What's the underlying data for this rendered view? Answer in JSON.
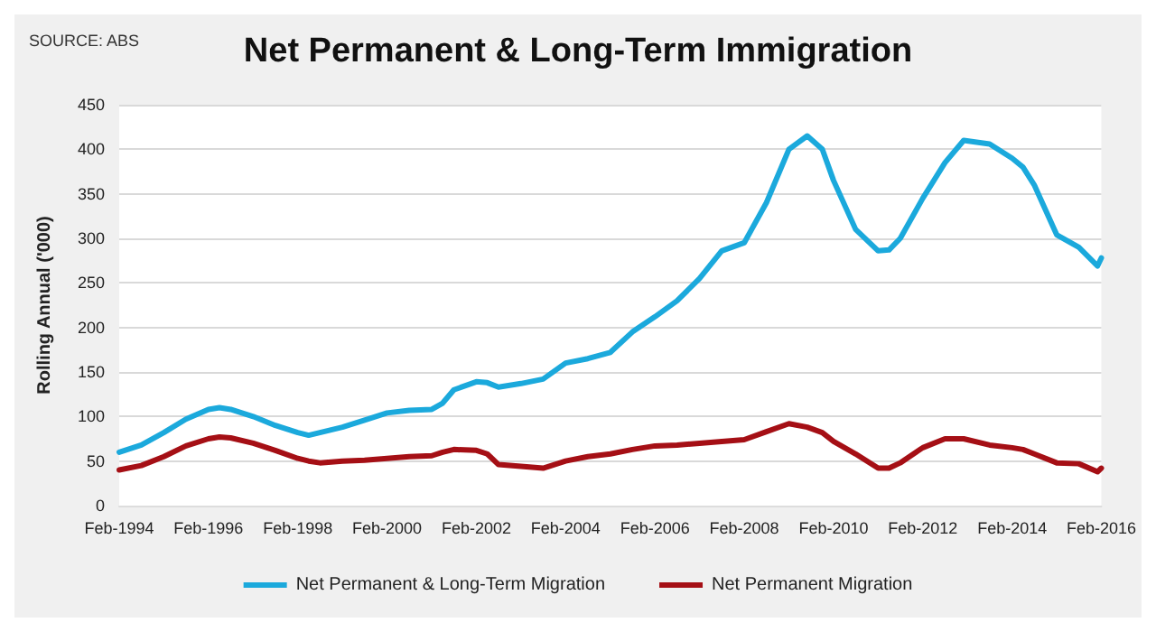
{
  "chart_data": {
    "type": "line",
    "title": "Net Permanent & Long-Term Immigration",
    "ylabel": "Rolling Annual ('000)",
    "annotations": [
      "SOURCE: ABS"
    ],
    "xlim": [
      "1994-02",
      "2016-02"
    ],
    "xticks": [
      {
        "value": "1994-02",
        "label": "Feb-1994"
      },
      {
        "value": "1996-02",
        "label": "Feb-1996"
      },
      {
        "value": "1998-02",
        "label": "Feb-1998"
      },
      {
        "value": "2000-02",
        "label": "Feb-2000"
      },
      {
        "value": "2002-02",
        "label": "Feb-2002"
      },
      {
        "value": "2004-02",
        "label": "Feb-2004"
      },
      {
        "value": "2006-02",
        "label": "Feb-2006"
      },
      {
        "value": "2008-02",
        "label": "Feb-2008"
      },
      {
        "value": "2010-02",
        "label": "Feb-2010"
      },
      {
        "value": "2012-02",
        "label": "Feb-2012"
      },
      {
        "value": "2014-02",
        "label": "Feb-2014"
      },
      {
        "value": "2016-02",
        "label": "Feb-2016"
      }
    ],
    "ylim": [
      0,
      450
    ],
    "yticks": [
      0,
      50,
      100,
      150,
      200,
      250,
      300,
      350,
      400,
      450
    ],
    "grid": "y",
    "legend": "bottom",
    "marker": "none",
    "line_style": "solid",
    "x": [
      "1994-02",
      "1994-08",
      "1995-02",
      "1995-08",
      "1996-02",
      "1996-05",
      "1996-08",
      "1997-02",
      "1997-08",
      "1998-02",
      "1998-05",
      "1998-08",
      "1999-02",
      "1999-08",
      "2000-02",
      "2000-08",
      "2001-02",
      "2001-05",
      "2001-08",
      "2002-02",
      "2002-05",
      "2002-08",
      "2003-02",
      "2003-08",
      "2004-02",
      "2004-08",
      "2005-02",
      "2005-08",
      "2006-02",
      "2006-08",
      "2007-02",
      "2007-08",
      "2008-02",
      "2008-08",
      "2009-02",
      "2009-07",
      "2009-11",
      "2010-02",
      "2010-08",
      "2011-02",
      "2011-05",
      "2011-08",
      "2012-02",
      "2012-08",
      "2013-01",
      "2013-08",
      "2014-02",
      "2014-05",
      "2014-08",
      "2015-02",
      "2015-08",
      "2016-01",
      "2016-02"
    ],
    "series": [
      {
        "name": "Net Permanent & Long-Term Migration",
        "color": "#1ba9dc",
        "values": [
          60,
          68,
          82,
          97,
          108,
          110,
          108,
          100,
          90,
          82,
          79,
          82,
          88,
          96,
          104,
          107,
          108,
          115,
          130,
          139,
          138,
          133,
          137,
          142,
          160,
          165,
          172,
          195,
          212,
          230,
          255,
          286,
          295,
          340,
          400,
          415,
          400,
          365,
          310,
          286,
          287,
          300,
          345,
          385,
          410,
          406,
          390,
          380,
          360,
          304,
          290,
          269,
          278
        ]
      },
      {
        "name": "Net Permanent Migration",
        "color": "#a50f15",
        "values": [
          40,
          45,
          55,
          67,
          75,
          77,
          76,
          70,
          62,
          53,
          50,
          48,
          50,
          51,
          53,
          55,
          56,
          60,
          63,
          62,
          58,
          46,
          44,
          42,
          50,
          55,
          58,
          63,
          67,
          68,
          70,
          72,
          74,
          83,
          92,
          88,
          82,
          72,
          58,
          42,
          42,
          48,
          65,
          75,
          75,
          68,
          65,
          63,
          58,
          48,
          47,
          38,
          42
        ]
      }
    ]
  }
}
